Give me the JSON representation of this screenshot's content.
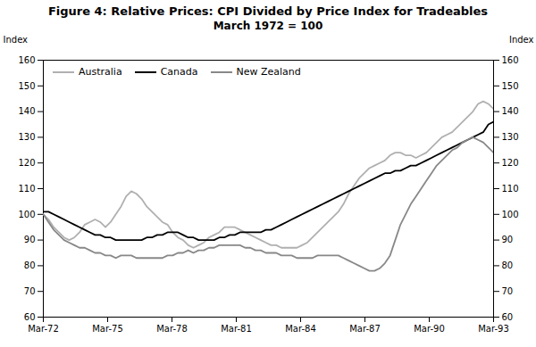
{
  "chart_data": {
    "type": "line",
    "title": "Figure 4: Relative Prices: CPI Divided by Price Index for Tradeables",
    "subtitle": "March 1972 = 100",
    "ylabel": "Index",
    "y2label": "Index",
    "xlim": [
      0,
      84
    ],
    "xticks": [
      {
        "value": 0,
        "label": "Mar-72"
      },
      {
        "value": 12,
        "label": "Mar-75"
      },
      {
        "value": 24,
        "label": "Mar-78"
      },
      {
        "value": 36,
        "label": "Mar-81"
      },
      {
        "value": 48,
        "label": "Mar-84"
      },
      {
        "value": 60,
        "label": "Mar-87"
      },
      {
        "value": 72,
        "label": "Mar-90"
      },
      {
        "value": 84,
        "label": "Mar-93"
      }
    ],
    "ylim": [
      60,
      160
    ],
    "yticks": [
      60,
      70,
      80,
      90,
      100,
      110,
      120,
      130,
      140,
      150,
      160
    ],
    "y2lim": [
      60,
      160
    ],
    "y2ticks": [
      60,
      70,
      80,
      90,
      100,
      110,
      120,
      130,
      140,
      150,
      160
    ],
    "grid": false,
    "legend": "upper left",
    "x": [
      0,
      0.965517,
      1.931034,
      2.896552,
      3.862069,
      4.827586,
      5.793103,
      6.758621,
      7.724138,
      8.689655,
      9.655172,
      10.62069,
      11.586207,
      12.551724,
      13.517241,
      14.482759,
      15.448276,
      16.413793,
      17.37931,
      18.344828,
      19.310345,
      20.275862,
      21.241379,
      22.206897,
      23.172414,
      24.137931,
      25.103448,
      26.068966,
      27.034483,
      28,
      28.965517,
      29.931034,
      30.896552,
      31.862069,
      32.827586,
      33.793103,
      34.758621,
      35.724138,
      36.689655,
      37.655172,
      38.62069,
      39.586207,
      40.551724,
      41.517241,
      42.482759,
      43.448276,
      44.413793,
      45.37931,
      46.344828,
      47.310345,
      48.275862,
      49.241379,
      50.206897,
      51.172414,
      52.137931,
      53.103448,
      54.068966,
      55.034483,
      56,
      56.965517,
      57.931034,
      58.896552,
      59.862069,
      60.827586,
      61.793103,
      62.758621,
      63.724138,
      64.689655,
      65.655172,
      66.62069,
      67.586207,
      68.551724,
      69.517241,
      70.482759,
      71.448276,
      72.413793,
      73.37931,
      74.344828,
      75.310345,
      76.275862,
      77.241379,
      78.206897,
      79.172414,
      80.137931,
      81.103448,
      82.068966,
      83.034483,
      84
    ],
    "series": [
      {
        "name": "Australia",
        "color": "#b0b0b0",
        "values": [
          100,
          98,
          95,
          93,
          91,
          90,
          91,
          93,
          96,
          97,
          98,
          97,
          95,
          97,
          100,
          103,
          107,
          109,
          108,
          106,
          103,
          101,
          99,
          97,
          96,
          93,
          91,
          90,
          88,
          87,
          88,
          89,
          91,
          92,
          93,
          95,
          95,
          95,
          94,
          93,
          92,
          91,
          90,
          89,
          88,
          88,
          87,
          87,
          87,
          87,
          88,
          89,
          91,
          93,
          95,
          97,
          99,
          101,
          104,
          108,
          111,
          114,
          116,
          118,
          119,
          120,
          121,
          123,
          124,
          124,
          123,
          123,
          122,
          123,
          124,
          126,
          128,
          130,
          131,
          132,
          134,
          136,
          138,
          140,
          143,
          144,
          143,
          141
        ]
      },
      {
        "name": "Canada",
        "color": "#000000",
        "values": [
          101,
          101,
          100,
          99,
          98,
          97,
          96,
          95,
          94,
          93,
          92,
          92,
          91,
          91,
          90,
          90,
          90,
          90,
          90,
          90,
          91,
          91,
          92,
          92,
          93,
          93,
          93,
          92,
          91,
          91,
          90,
          90,
          90,
          90,
          91,
          91,
          92,
          92,
          93,
          93,
          93,
          93,
          93,
          94,
          94,
          95,
          96,
          97,
          98,
          99,
          100,
          101,
          102,
          103,
          104,
          105,
          106,
          107,
          108,
          109,
          110,
          111,
          112,
          113,
          114,
          115,
          116,
          116,
          117,
          117,
          118,
          119,
          119,
          120,
          121,
          122,
          123,
          124,
          125,
          126,
          127,
          128,
          129,
          130,
          131,
          132,
          135,
          136
        ]
      },
      {
        "name": "New Zealand",
        "color": "#888888",
        "values": [
          100,
          97,
          94,
          92,
          90,
          89,
          88,
          87,
          87,
          86,
          85,
          85,
          84,
          84,
          83,
          84,
          84,
          84,
          83,
          83,
          83,
          83,
          83,
          83,
          84,
          84,
          85,
          85,
          86,
          85,
          86,
          86,
          87,
          87,
          88,
          88,
          88,
          88,
          88,
          87,
          87,
          86,
          86,
          85,
          85,
          85,
          84,
          84,
          84,
          83,
          83,
          83,
          83,
          84,
          84,
          84,
          84,
          84,
          83,
          82,
          81,
          80,
          79,
          78,
          78,
          79,
          81,
          84,
          90,
          96,
          100,
          104,
          107,
          110,
          113,
          116,
          119,
          121,
          123,
          125,
          126,
          128,
          129,
          130,
          129,
          128,
          126,
          124
        ]
      }
    ]
  }
}
